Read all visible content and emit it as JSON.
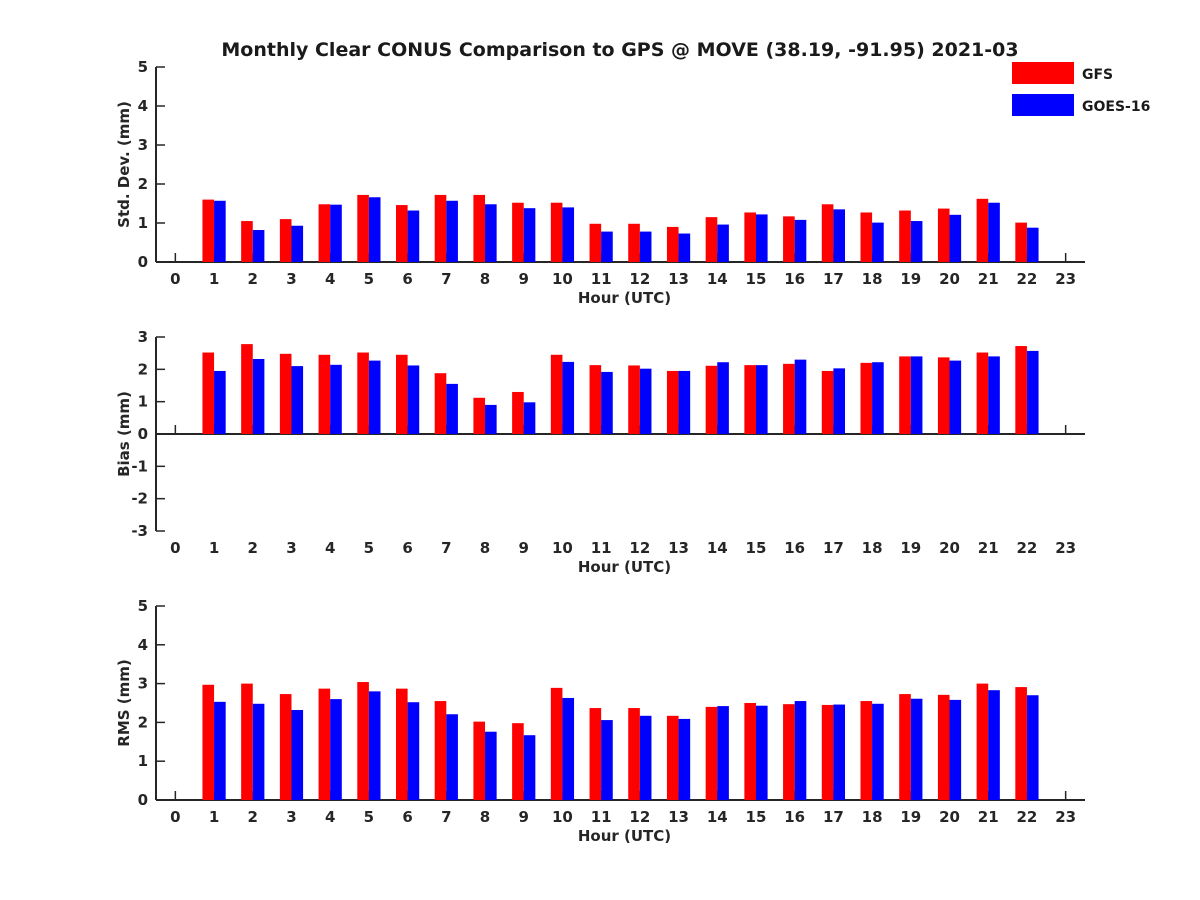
{
  "figure": {
    "title": "Monthly Clear CONUS Comparison to GPS @ MOVE (38.19, -91.95) 2021-03"
  },
  "legend": {
    "position": "top-right",
    "entries": [
      {
        "name": "GFS",
        "color": "#ff0000"
      },
      {
        "name": "GOES-16",
        "color": "#0000ff"
      }
    ]
  },
  "chart_data": [
    {
      "type": "bar",
      "ylabel": "Std. Dev. (mm)",
      "xlabel": "Hour (UTC)",
      "ylim": [
        0,
        5
      ],
      "yticks": [
        0,
        1,
        2,
        3,
        4,
        5
      ],
      "xlim": [
        -0.5,
        23.5
      ],
      "categories": [
        "0",
        "1",
        "2",
        "3",
        "4",
        "5",
        "6",
        "7",
        "8",
        "9",
        "10",
        "11",
        "12",
        "13",
        "14",
        "15",
        "16",
        "17",
        "18",
        "19",
        "20",
        "21",
        "22",
        "23"
      ],
      "series": [
        {
          "name": "GFS",
          "color": "#ff0000",
          "values": [
            null,
            1.6,
            1.05,
            1.1,
            1.48,
            1.72,
            1.46,
            1.72,
            1.72,
            1.52,
            1.52,
            0.98,
            0.98,
            0.9,
            1.15,
            1.27,
            1.17,
            1.48,
            1.27,
            1.32,
            1.37,
            1.62,
            1.01,
            null
          ]
        },
        {
          "name": "GOES-16",
          "color": "#0000ff",
          "values": [
            null,
            1.57,
            0.82,
            0.93,
            1.47,
            1.66,
            1.32,
            1.57,
            1.48,
            1.38,
            1.4,
            0.78,
            0.78,
            0.73,
            0.96,
            1.22,
            1.08,
            1.35,
            1.01,
            1.05,
            1.21,
            1.52,
            0.88,
            null
          ]
        }
      ]
    },
    {
      "type": "bar",
      "ylabel": "Bias (mm)",
      "xlabel": "Hour (UTC)",
      "ylim": [
        -3,
        3
      ],
      "yticks": [
        -3,
        -2,
        -1,
        0,
        1,
        2,
        3
      ],
      "xlim": [
        -0.5,
        23.5
      ],
      "categories": [
        "0",
        "1",
        "2",
        "3",
        "4",
        "5",
        "6",
        "7",
        "8",
        "9",
        "10",
        "11",
        "12",
        "13",
        "14",
        "15",
        "16",
        "17",
        "18",
        "19",
        "20",
        "21",
        "22",
        "23"
      ],
      "series": [
        {
          "name": "GFS",
          "color": "#ff0000",
          "values": [
            null,
            2.52,
            2.78,
            2.48,
            2.45,
            2.52,
            2.45,
            1.88,
            1.12,
            1.3,
            2.45,
            2.13,
            2.12,
            1.95,
            2.11,
            2.13,
            2.17,
            1.95,
            2.2,
            2.4,
            2.37,
            2.52,
            2.72,
            null
          ]
        },
        {
          "name": "GOES-16",
          "color": "#0000ff",
          "values": [
            null,
            1.95,
            2.32,
            2.1,
            2.14,
            2.27,
            2.12,
            1.55,
            0.9,
            0.98,
            2.23,
            1.92,
            2.02,
            1.95,
            2.22,
            2.13,
            2.3,
            2.03,
            2.22,
            2.4,
            2.27,
            2.4,
            2.57,
            null
          ]
        }
      ]
    },
    {
      "type": "bar",
      "ylabel": "RMS (mm)",
      "xlabel": "Hour (UTC)",
      "ylim": [
        0,
        5
      ],
      "yticks": [
        0,
        1,
        2,
        3,
        4,
        5
      ],
      "xlim": [
        -0.5,
        23.5
      ],
      "categories": [
        "0",
        "1",
        "2",
        "3",
        "4",
        "5",
        "6",
        "7",
        "8",
        "9",
        "10",
        "11",
        "12",
        "13",
        "14",
        "15",
        "16",
        "17",
        "18",
        "19",
        "20",
        "21",
        "22",
        "23"
      ],
      "series": [
        {
          "name": "GFS",
          "color": "#ff0000",
          "values": [
            null,
            2.97,
            3.0,
            2.73,
            2.87,
            3.04,
            2.87,
            2.55,
            2.02,
            1.98,
            2.89,
            2.37,
            2.37,
            2.17,
            2.4,
            2.5,
            2.47,
            2.45,
            2.55,
            2.73,
            2.71,
            3.0,
            2.91,
            null
          ]
        },
        {
          "name": "GOES-16",
          "color": "#0000ff",
          "values": [
            null,
            2.53,
            2.48,
            2.32,
            2.6,
            2.8,
            2.52,
            2.21,
            1.76,
            1.67,
            2.63,
            2.06,
            2.17,
            2.09,
            2.42,
            2.43,
            2.55,
            2.46,
            2.48,
            2.61,
            2.58,
            2.83,
            2.7,
            null
          ]
        }
      ]
    }
  ]
}
